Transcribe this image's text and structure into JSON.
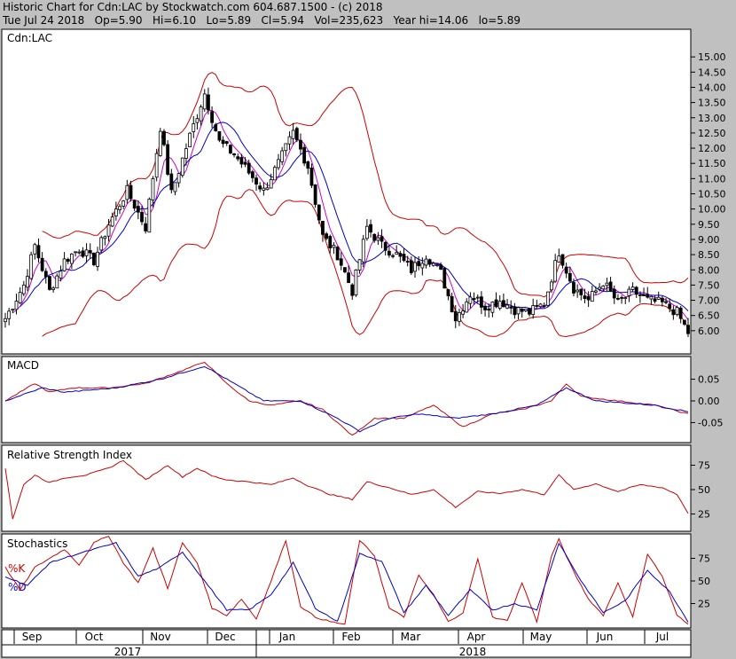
{
  "header": {
    "line1": "Historic Chart for Cdn:LAC by Stockwatch.com 604.687.1500 - (c) 2018",
    "line2": "Tue Jul 24 2018   Op=5.90   Hi=6.10   Lo=5.89   Cl=5.94   Vol=235,623   Year hi=14.06   lo=5.89"
  },
  "colors": {
    "background": "#c0c0c0",
    "panel": "#ffffff",
    "up": "#000000",
    "red": "#cc0000",
    "blue": "#0000cc",
    "magenta": "#cc00cc"
  },
  "chart_data": [
    {
      "type": "candlestick",
      "panel": "price",
      "title": "Cdn:LAC",
      "ylim": [
        5.5,
        15.5
      ],
      "yticks": [
        6.0,
        6.5,
        7.0,
        7.5,
        8.0,
        8.5,
        9.0,
        9.5,
        10.0,
        10.5,
        11.0,
        11.5,
        12.0,
        12.5,
        13.0,
        13.5,
        14.0,
        14.5,
        15.0
      ],
      "close_keypoints": [
        [
          0,
          6.4
        ],
        [
          5,
          7.5
        ],
        [
          8,
          8.8
        ],
        [
          12,
          7.3
        ],
        [
          16,
          8.3
        ],
        [
          20,
          8.7
        ],
        [
          24,
          8.3
        ],
        [
          28,
          9.5
        ],
        [
          33,
          10.6
        ],
        [
          38,
          9.4
        ],
        [
          42,
          12.7
        ],
        [
          45,
          10.5
        ],
        [
          50,
          12.4
        ],
        [
          54,
          13.8
        ],
        [
          58,
          12.2
        ],
        [
          62,
          11.8
        ],
        [
          66,
          11.2
        ],
        [
          70,
          10.6
        ],
        [
          74,
          11.5
        ],
        [
          78,
          12.5
        ],
        [
          82,
          11.4
        ],
        [
          86,
          9.1
        ],
        [
          90,
          8.5
        ],
        [
          94,
          7.3
        ],
        [
          98,
          9.4
        ],
        [
          102,
          8.8
        ],
        [
          106,
          8.5
        ],
        [
          110,
          8.0
        ],
        [
          114,
          8.5
        ],
        [
          118,
          7.9
        ],
        [
          122,
          6.4
        ],
        [
          126,
          7.2
        ],
        [
          130,
          6.8
        ],
        [
          134,
          7.0
        ],
        [
          138,
          6.7
        ],
        [
          142,
          6.6
        ],
        [
          146,
          6.9
        ],
        [
          150,
          8.6
        ],
        [
          154,
          7.4
        ],
        [
          158,
          7.0
        ],
        [
          162,
          7.6
        ],
        [
          166,
          6.9
        ],
        [
          170,
          7.3
        ],
        [
          174,
          7.0
        ],
        [
          178,
          6.9
        ],
        [
          182,
          6.6
        ],
        [
          185,
          5.94
        ]
      ],
      "series": [
        {
          "name": "",
          "kind": "bollinger",
          "color": "#cc0000"
        },
        {
          "name": "",
          "kind": "moving-average-short",
          "color": "#cc00cc"
        },
        {
          "name": "",
          "kind": "moving-average-long",
          "color": "#0000cc"
        }
      ],
      "x_tick_labels": [
        "Sep",
        "Oct",
        "Nov",
        "Dec",
        "Jan",
        "Feb",
        "Mar",
        "Apr",
        "May",
        "Jun",
        "Jul"
      ],
      "year_labels": [
        "2017",
        "2018"
      ]
    },
    {
      "type": "line",
      "panel": "macd",
      "title": "MACD",
      "ylim": [
        -0.09,
        0.09
      ],
      "yticks_labels": [
        "0.05",
        "0.00",
        "-0.05"
      ],
      "yticks": [
        0.05,
        0.0,
        -0.05
      ],
      "series": [
        {
          "name": "",
          "color": "#cc0000",
          "keypoints": [
            [
              0,
              0.0
            ],
            [
              8,
              0.04
            ],
            [
              12,
              0.02
            ],
            [
              18,
              0.03
            ],
            [
              28,
              0.03
            ],
            [
              38,
              0.04
            ],
            [
              48,
              0.07
            ],
            [
              54,
              0.09
            ],
            [
              60,
              0.04
            ],
            [
              66,
              0.0
            ],
            [
              72,
              -0.01
            ],
            [
              80,
              0.0
            ],
            [
              86,
              -0.02
            ],
            [
              94,
              -0.08
            ],
            [
              100,
              -0.04
            ],
            [
              108,
              -0.04
            ],
            [
              116,
              -0.01
            ],
            [
              124,
              -0.06
            ],
            [
              132,
              -0.03
            ],
            [
              140,
              -0.02
            ],
            [
              148,
              0.0
            ],
            [
              152,
              0.04
            ],
            [
              156,
              0.01
            ],
            [
              166,
              0.0
            ],
            [
              176,
              -0.01
            ],
            [
              185,
              -0.03
            ]
          ]
        },
        {
          "name": "",
          "color": "#0000cc",
          "keypoints": [
            [
              0,
              0.0
            ],
            [
              10,
              0.03
            ],
            [
              16,
              0.02
            ],
            [
              30,
              0.03
            ],
            [
              42,
              0.05
            ],
            [
              54,
              0.08
            ],
            [
              62,
              0.04
            ],
            [
              70,
              0.0
            ],
            [
              80,
              0.0
            ],
            [
              90,
              -0.04
            ],
            [
              96,
              -0.07
            ],
            [
              104,
              -0.04
            ],
            [
              112,
              -0.03
            ],
            [
              122,
              -0.04
            ],
            [
              132,
              -0.03
            ],
            [
              144,
              -0.01
            ],
            [
              152,
              0.03
            ],
            [
              160,
              0.0
            ],
            [
              176,
              -0.01
            ],
            [
              185,
              -0.025
            ]
          ]
        }
      ]
    },
    {
      "type": "line",
      "panel": "rsi",
      "title": "Relative Strength Index",
      "ylim": [
        10,
        90
      ],
      "yticks": [
        75,
        50,
        25
      ],
      "series": [
        {
          "name": "",
          "color": "#cc0000",
          "keypoints": [
            [
              0,
              72
            ],
            [
              2,
              20
            ],
            [
              5,
              55
            ],
            [
              8,
              65
            ],
            [
              12,
              57
            ],
            [
              16,
              62
            ],
            [
              22,
              65
            ],
            [
              28,
              72
            ],
            [
              32,
              80
            ],
            [
              38,
              60
            ],
            [
              44,
              75
            ],
            [
              48,
              63
            ],
            [
              52,
              72
            ],
            [
              56,
              64
            ],
            [
              60,
              60
            ],
            [
              66,
              58
            ],
            [
              72,
              55
            ],
            [
              78,
              62
            ],
            [
              82,
              54
            ],
            [
              88,
              45
            ],
            [
              94,
              40
            ],
            [
              98,
              58
            ],
            [
              104,
              52
            ],
            [
              110,
              45
            ],
            [
              116,
              50
            ],
            [
              122,
              32
            ],
            [
              128,
              48
            ],
            [
              134,
              46
            ],
            [
              140,
              50
            ],
            [
              146,
              45
            ],
            [
              150,
              65
            ],
            [
              154,
              50
            ],
            [
              160,
              56
            ],
            [
              166,
              48
            ],
            [
              172,
              55
            ],
            [
              178,
              52
            ],
            [
              182,
              45
            ],
            [
              185,
              26
            ]
          ]
        }
      ]
    },
    {
      "type": "line",
      "panel": "stochastics",
      "title": "Stochastics",
      "ylim": [
        0,
        100
      ],
      "yticks": [
        75,
        50,
        25
      ],
      "series": [
        {
          "name": "%K",
          "color": "#cc0000",
          "keypoints": [
            [
              0,
              65
            ],
            [
              4,
              40
            ],
            [
              8,
              65
            ],
            [
              12,
              75
            ],
            [
              16,
              85
            ],
            [
              20,
              68
            ],
            [
              24,
              92
            ],
            [
              28,
              100
            ],
            [
              32,
              70
            ],
            [
              36,
              48
            ],
            [
              40,
              86
            ],
            [
              44,
              42
            ],
            [
              48,
              92
            ],
            [
              52,
              70
            ],
            [
              56,
              20
            ],
            [
              60,
              12
            ],
            [
              64,
              30
            ],
            [
              68,
              8
            ],
            [
              72,
              50
            ],
            [
              76,
              95
            ],
            [
              80,
              22
            ],
            [
              84,
              10
            ],
            [
              88,
              5
            ],
            [
              92,
              2
            ],
            [
              96,
              95
            ],
            [
              100,
              78
            ],
            [
              104,
              20
            ],
            [
              108,
              10
            ],
            [
              112,
              56
            ],
            [
              116,
              35
            ],
            [
              120,
              5
            ],
            [
              124,
              15
            ],
            [
              128,
              74
            ],
            [
              132,
              10
            ],
            [
              136,
              6
            ],
            [
              140,
              48
            ],
            [
              144,
              5
            ],
            [
              148,
              78
            ],
            [
              150,
              96
            ],
            [
              154,
              60
            ],
            [
              158,
              30
            ],
            [
              162,
              12
            ],
            [
              166,
              48
            ],
            [
              170,
              10
            ],
            [
              174,
              80
            ],
            [
              178,
              55
            ],
            [
              182,
              12
            ],
            [
              185,
              2
            ]
          ]
        },
        {
          "name": "%D",
          "color": "#0000cc",
          "keypoints": [
            [
              0,
              55
            ],
            [
              6,
              45
            ],
            [
              12,
              70
            ],
            [
              18,
              78
            ],
            [
              24,
              85
            ],
            [
              30,
              92
            ],
            [
              36,
              55
            ],
            [
              42,
              65
            ],
            [
              48,
              82
            ],
            [
              54,
              50
            ],
            [
              60,
              18
            ],
            [
              66,
              18
            ],
            [
              72,
              35
            ],
            [
              78,
              70
            ],
            [
              84,
              20
            ],
            [
              90,
              5
            ],
            [
              96,
              80
            ],
            [
              102,
              72
            ],
            [
              108,
              15
            ],
            [
              114,
              45
            ],
            [
              120,
              12
            ],
            [
              126,
              40
            ],
            [
              132,
              18
            ],
            [
              138,
              25
            ],
            [
              144,
              18
            ],
            [
              150,
              92
            ],
            [
              156,
              50
            ],
            [
              162,
              15
            ],
            [
              168,
              28
            ],
            [
              174,
              62
            ],
            [
              180,
              38
            ],
            [
              185,
              5
            ]
          ]
        }
      ]
    }
  ]
}
